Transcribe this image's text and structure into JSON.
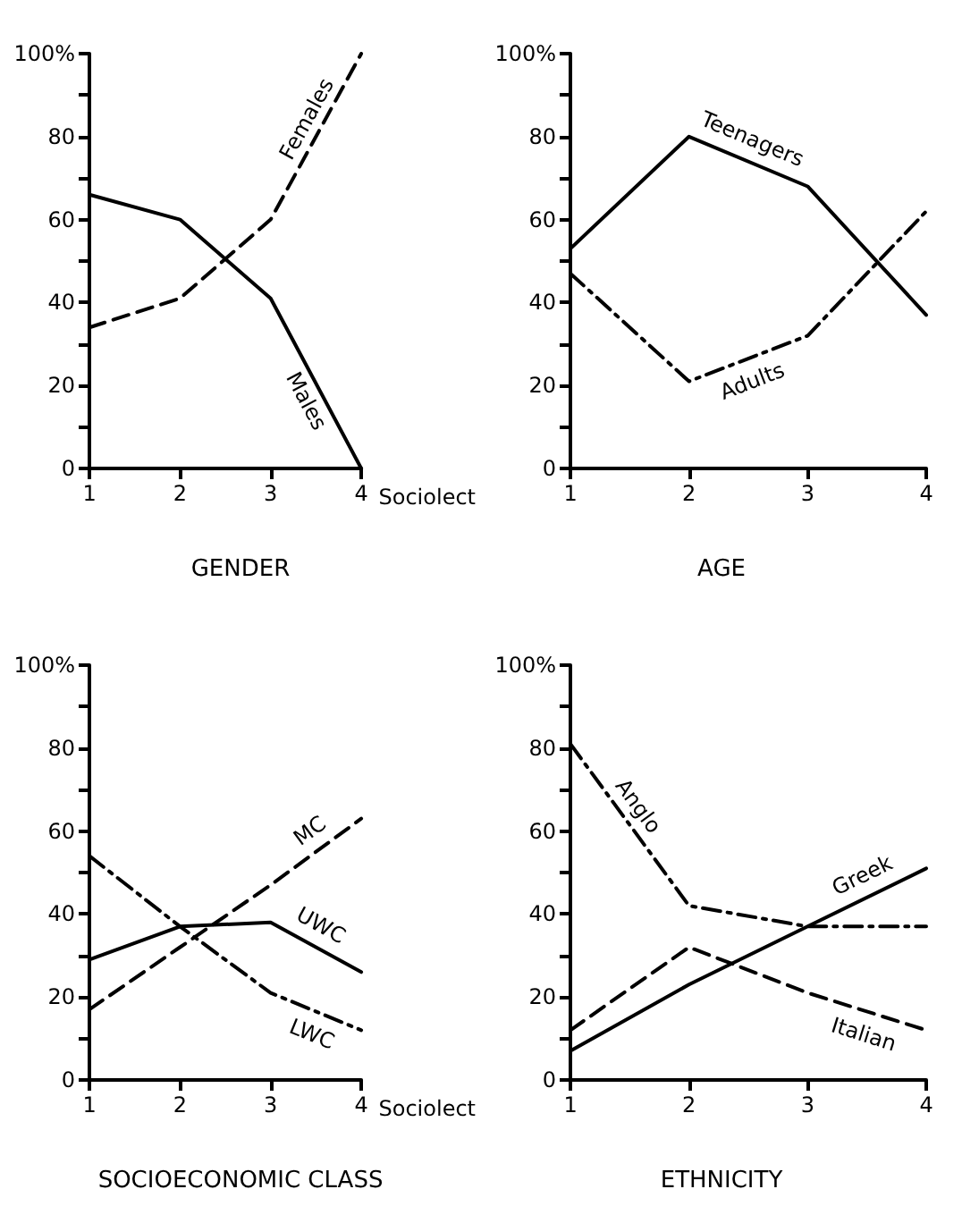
{
  "chart_data": [
    {
      "type": "line",
      "title": "GENDER",
      "xlabel": "Sociolect",
      "x": [
        1,
        2,
        3,
        4
      ],
      "xlim": [
        1,
        4
      ],
      "xticks": [
        1,
        2,
        3,
        4
      ],
      "ylim": [
        0,
        100
      ],
      "yticks": [
        0,
        {
          "value": 10,
          "label": null
        },
        20,
        {
          "value": 30,
          "label": null
        },
        40,
        {
          "value": 50,
          "label": null
        },
        60,
        {
          "value": 70,
          "label": null
        },
        80,
        {
          "value": 90,
          "label": null
        },
        {
          "value": 100,
          "label": "100%"
        }
      ],
      "grid": false,
      "legend": false,
      "marker": "none",
      "series": [
        {
          "name": "Males",
          "color": "#000000",
          "line_style": "solid",
          "values": [
            66,
            60,
            41,
            0
          ]
        },
        {
          "name": "Females",
          "color": "#000000",
          "line_style": "dashed",
          "values": [
            34,
            41,
            60,
            100
          ]
        }
      ]
    },
    {
      "type": "line",
      "title": "AGE",
      "x": [
        1,
        2,
        3,
        4
      ],
      "xlim": [
        1,
        4
      ],
      "xticks": [
        1,
        2,
        3,
        4
      ],
      "ylim": [
        0,
        100
      ],
      "yticks": [
        0,
        {
          "value": 10,
          "label": null
        },
        20,
        {
          "value": 30,
          "label": null
        },
        40,
        {
          "value": 50,
          "label": null
        },
        60,
        {
          "value": 70,
          "label": null
        },
        80,
        {
          "value": 90,
          "label": null
        },
        {
          "value": 100,
          "label": "100%"
        }
      ],
      "grid": false,
      "legend": false,
      "marker": "none",
      "series": [
        {
          "name": "Teenagers",
          "color": "#000000",
          "line_style": "solid",
          "values": [
            53,
            80,
            68,
            37
          ]
        },
        {
          "name": "Adults",
          "color": "#000000",
          "line_style": "dashdot",
          "values": [
            47,
            21,
            32,
            62
          ]
        }
      ]
    },
    {
      "type": "line",
      "title": "SOCIOECONOMIC CLASS",
      "xlabel": "Sociolect",
      "x": [
        1,
        2,
        3,
        4
      ],
      "xlim": [
        1,
        4
      ],
      "xticks": [
        1,
        2,
        3,
        4
      ],
      "ylim": [
        0,
        100
      ],
      "yticks": [
        0,
        {
          "value": 10,
          "label": null
        },
        20,
        {
          "value": 30,
          "label": null
        },
        40,
        {
          "value": 50,
          "label": null
        },
        60,
        {
          "value": 70,
          "label": null
        },
        80,
        {
          "value": 90,
          "label": null
        },
        {
          "value": 100,
          "label": "100%"
        }
      ],
      "grid": false,
      "legend": false,
      "marker": "none",
      "series": [
        {
          "name": "MC",
          "color": "#000000",
          "line_style": "dashed",
          "values": [
            17,
            32,
            47,
            63
          ]
        },
        {
          "name": "UWC",
          "color": "#000000",
          "line_style": "solid",
          "values": [
            29,
            37,
            38,
            26
          ]
        },
        {
          "name": "LWC",
          "color": "#000000",
          "line_style": "dashdot",
          "values": [
            54,
            37,
            21,
            12
          ]
        }
      ]
    },
    {
      "type": "line",
      "title": "ETHNICITY",
      "x": [
        1,
        2,
        3,
        4
      ],
      "xlim": [
        1,
        4
      ],
      "xticks": [
        1,
        2,
        3,
        4
      ],
      "ylim": [
        0,
        100
      ],
      "yticks": [
        0,
        {
          "value": 10,
          "label": null
        },
        20,
        {
          "value": 30,
          "label": null
        },
        40,
        {
          "value": 50,
          "label": null
        },
        60,
        {
          "value": 70,
          "label": null
        },
        80,
        {
          "value": 90,
          "label": null
        },
        {
          "value": 100,
          "label": "100%"
        }
      ],
      "grid": false,
      "legend": false,
      "marker": "none",
      "series": [
        {
          "name": "Anglo",
          "color": "#000000",
          "line_style": "dashdot",
          "values": [
            81,
            42,
            37,
            37
          ]
        },
        {
          "name": "Greek",
          "color": "#000000",
          "line_style": "solid",
          "values": [
            7,
            23,
            37,
            51
          ]
        },
        {
          "name": "Italian",
          "color": "#000000",
          "line_style": "dashed",
          "values": [
            12,
            32,
            21,
            12
          ]
        }
      ]
    }
  ]
}
